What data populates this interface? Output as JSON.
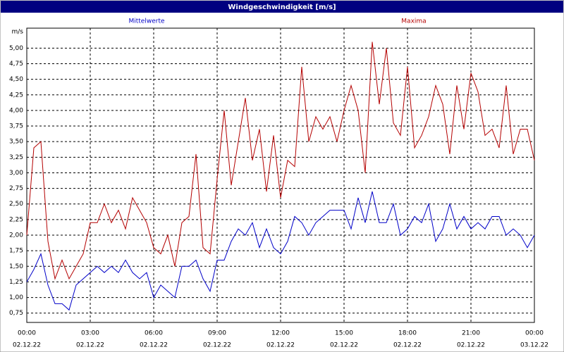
{
  "chart_data": {
    "type": "line",
    "title": "Windgeschwindigkeit [m/s]",
    "ylabel": "m/s",
    "x": [
      0,
      20,
      40,
      60,
      80,
      100,
      120,
      140,
      160,
      180,
      200,
      220,
      240,
      260,
      280,
      300,
      320,
      340,
      360,
      380,
      400,
      420,
      440,
      460,
      480,
      500,
      520,
      540,
      560,
      580,
      600,
      620,
      640,
      660,
      680,
      700,
      720,
      740,
      760,
      780,
      800,
      820,
      840,
      860,
      880,
      900,
      920,
      940,
      960,
      980,
      1000,
      1020,
      1040,
      1060,
      1080,
      1100,
      1120,
      1140,
      1160,
      1180,
      1200,
      1220,
      1240,
      1260,
      1280,
      1300,
      1320,
      1340,
      1360,
      1380,
      1400,
      1420,
      1440
    ],
    "series": [
      {
        "name": "Mittelwerte",
        "color": "#0000c8",
        "values": [
          1.25,
          1.45,
          1.7,
          1.2,
          0.9,
          0.9,
          0.8,
          1.2,
          1.3,
          1.4,
          1.5,
          1.4,
          1.5,
          1.4,
          1.6,
          1.4,
          1.3,
          1.4,
          1.0,
          1.2,
          1.1,
          1.0,
          1.5,
          1.5,
          1.6,
          1.3,
          1.1,
          1.6,
          1.6,
          1.9,
          2.1,
          2.0,
          2.2,
          1.8,
          2.1,
          1.8,
          1.7,
          1.9,
          2.3,
          2.2,
          2.0,
          2.2,
          2.3,
          2.4,
          2.4,
          2.4,
          2.1,
          2.6,
          2.2,
          2.7,
          2.2,
          2.2,
          2.5,
          2.0,
          2.1,
          2.3,
          2.2,
          2.5,
          1.9,
          2.1,
          2.5,
          2.1,
          2.3,
          2.1,
          2.2,
          2.1,
          2.3,
          2.3,
          2.0,
          2.1,
          2.0,
          1.8,
          2.0
        ]
      },
      {
        "name": "Maxima",
        "color": "#b40000",
        "values": [
          2.0,
          3.4,
          3.5,
          1.9,
          1.3,
          1.6,
          1.3,
          1.5,
          1.7,
          2.2,
          2.2,
          2.5,
          2.2,
          2.4,
          2.1,
          2.6,
          2.4,
          2.2,
          1.8,
          1.7,
          2.0,
          1.5,
          2.2,
          2.3,
          3.3,
          1.8,
          1.7,
          2.9,
          4.0,
          2.8,
          3.5,
          4.2,
          3.2,
          3.7,
          2.7,
          3.6,
          2.6,
          3.2,
          3.1,
          4.7,
          3.5,
          3.9,
          3.7,
          3.9,
          3.5,
          4.0,
          4.4,
          4.0,
          3.0,
          5.1,
          4.1,
          5.0,
          3.8,
          3.6,
          4.7,
          3.4,
          3.6,
          3.9,
          4.4,
          4.1,
          3.3,
          4.4,
          3.7,
          4.6,
          4.3,
          3.6,
          3.7,
          3.4,
          4.4,
          3.3,
          3.7,
          3.7,
          3.2
        ]
      }
    ],
    "xlim": [
      0,
      1440
    ],
    "xticks": [
      {
        "value": 0,
        "label": "00:00",
        "date": "02.12.22"
      },
      {
        "value": 180,
        "label": "03:00",
        "date": "02.12.22"
      },
      {
        "value": 360,
        "label": "06:00",
        "date": "02.12.22"
      },
      {
        "value": 540,
        "label": "09:00",
        "date": "02.12.22"
      },
      {
        "value": 720,
        "label": "12:00",
        "date": "02.12.22"
      },
      {
        "value": 900,
        "label": "15:00",
        "date": "02.12.22"
      },
      {
        "value": 1080,
        "label": "18:00",
        "date": "02.12.22"
      },
      {
        "value": 1260,
        "label": "21:00",
        "date": "02.12.22"
      },
      {
        "value": 1440,
        "label": "00:00",
        "date": "03.12.22"
      }
    ],
    "ylim": [
      0.6,
      5.32
    ],
    "yticks": [
      {
        "value": 0.75,
        "label": "0,75"
      },
      {
        "value": 1.0,
        "label": "1,00"
      },
      {
        "value": 1.25,
        "label": "1,25"
      },
      {
        "value": 1.5,
        "label": "1,50"
      },
      {
        "value": 1.75,
        "label": "1,75"
      },
      {
        "value": 2.0,
        "label": "2,00"
      },
      {
        "value": 2.25,
        "label": "2,25"
      },
      {
        "value": 2.5,
        "label": "2,50"
      },
      {
        "value": 2.75,
        "label": "2,75"
      },
      {
        "value": 3.0,
        "label": "3,00"
      },
      {
        "value": 3.25,
        "label": "3,25"
      },
      {
        "value": 3.5,
        "label": "3,50"
      },
      {
        "value": 3.75,
        "label": "3,75"
      },
      {
        "value": 4.0,
        "label": "4,00"
      },
      {
        "value": 4.25,
        "label": "4,25"
      },
      {
        "value": 4.5,
        "label": "4,50"
      },
      {
        "value": 4.75,
        "label": "4,75"
      },
      {
        "value": 5.0,
        "label": "5,00"
      }
    ],
    "grid": true
  }
}
